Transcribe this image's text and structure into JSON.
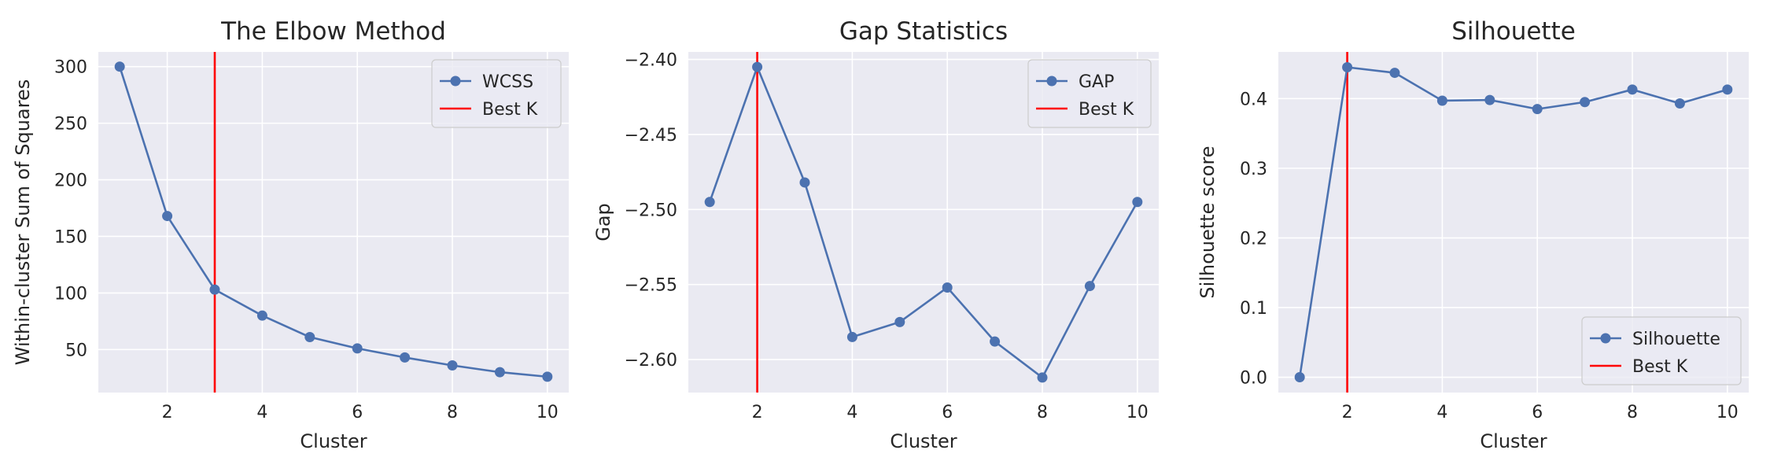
{
  "chart_data": [
    {
      "type": "line",
      "title": "The Elbow Method",
      "xlabel": "Cluster",
      "ylabel": "Within-cluster Sum of Squares",
      "x": [
        1,
        2,
        3,
        4,
        5,
        6,
        7,
        8,
        9,
        10
      ],
      "series": [
        {
          "name": "WCSS",
          "values": [
            300,
            168,
            103,
            80,
            61,
            51,
            43,
            36,
            30,
            26
          ]
        }
      ],
      "best_k": 3,
      "best_k_label": "Best K",
      "xlim": [
        0.55,
        10.45
      ],
      "ylim": [
        12,
        313
      ],
      "xticks": [
        2,
        4,
        6,
        8,
        10
      ],
      "yticks": [
        50,
        100,
        150,
        200,
        250,
        300
      ],
      "legend_position": "upper right",
      "grid": true
    },
    {
      "type": "line",
      "title": "Gap Statistics",
      "xlabel": "Cluster",
      "ylabel": "Gap",
      "x": [
        1,
        2,
        3,
        4,
        5,
        6,
        7,
        8,
        9,
        10
      ],
      "series": [
        {
          "name": "GAP",
          "values": [
            -2.495,
            -2.405,
            -2.482,
            -2.585,
            -2.575,
            -2.552,
            -2.588,
            -2.612,
            -2.551,
            -2.495
          ]
        }
      ],
      "best_k": 2,
      "best_k_label": "Best K",
      "xlim": [
        0.55,
        10.45
      ],
      "ylim": [
        -2.622,
        -2.395
      ],
      "xticks": [
        2,
        4,
        6,
        8,
        10
      ],
      "yticks": [
        -2.4,
        -2.45,
        -2.5,
        -2.55,
        -2.6
      ],
      "ytick_labels": [
        "−2.40",
        "−2.45",
        "−2.50",
        "−2.55",
        "−2.60"
      ],
      "legend_position": "upper right",
      "grid": true
    },
    {
      "type": "line",
      "title": "Silhouette",
      "xlabel": "Cluster",
      "ylabel": "Silhouette score",
      "x": [
        1,
        2,
        3,
        4,
        5,
        6,
        7,
        8,
        9,
        10
      ],
      "series": [
        {
          "name": "Silhouette",
          "values": [
            0.0,
            0.445,
            0.437,
            0.397,
            0.398,
            0.385,
            0.395,
            0.413,
            0.393,
            0.413
          ]
        }
      ],
      "best_k": 2,
      "best_k_label": "Best K",
      "xlim": [
        0.55,
        10.45
      ],
      "ylim": [
        -0.022,
        0.467
      ],
      "xticks": [
        2,
        4,
        6,
        8,
        10
      ],
      "yticks": [
        0.0,
        0.1,
        0.2,
        0.3,
        0.4
      ],
      "legend_position": "lower right",
      "grid": true
    }
  ],
  "colors": {
    "background": "#eaeaf2",
    "grid": "#ffffff",
    "line": "#4c72b0",
    "best_k": "#ff0000",
    "text": "#262626"
  }
}
